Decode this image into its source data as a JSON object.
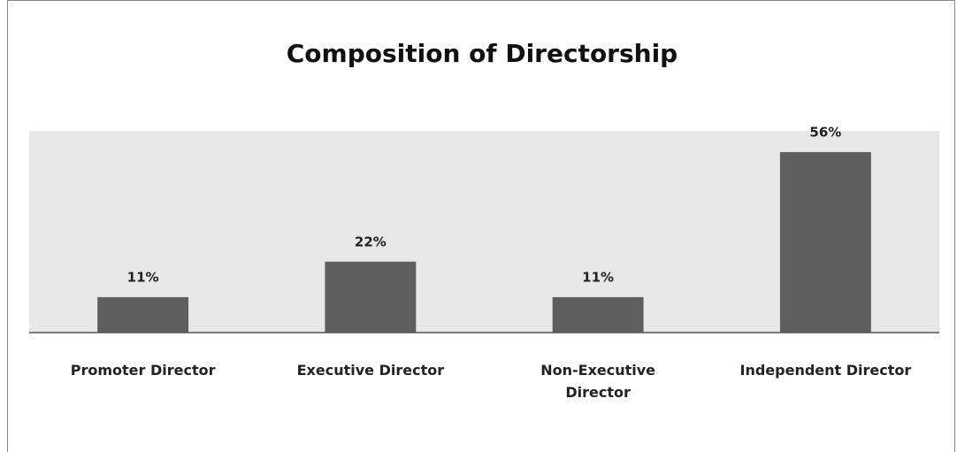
{
  "chart_data": {
    "type": "bar",
    "title": "Composition of Directorship",
    "categories": [
      "Promoter Director",
      "Executive Director",
      "Non-Executive Director",
      "Independent Director"
    ],
    "values": [
      11,
      22,
      11,
      56
    ],
    "value_labels": [
      "11%",
      "22%",
      "11%",
      "56%"
    ],
    "color": "#5f5f5f"
  }
}
